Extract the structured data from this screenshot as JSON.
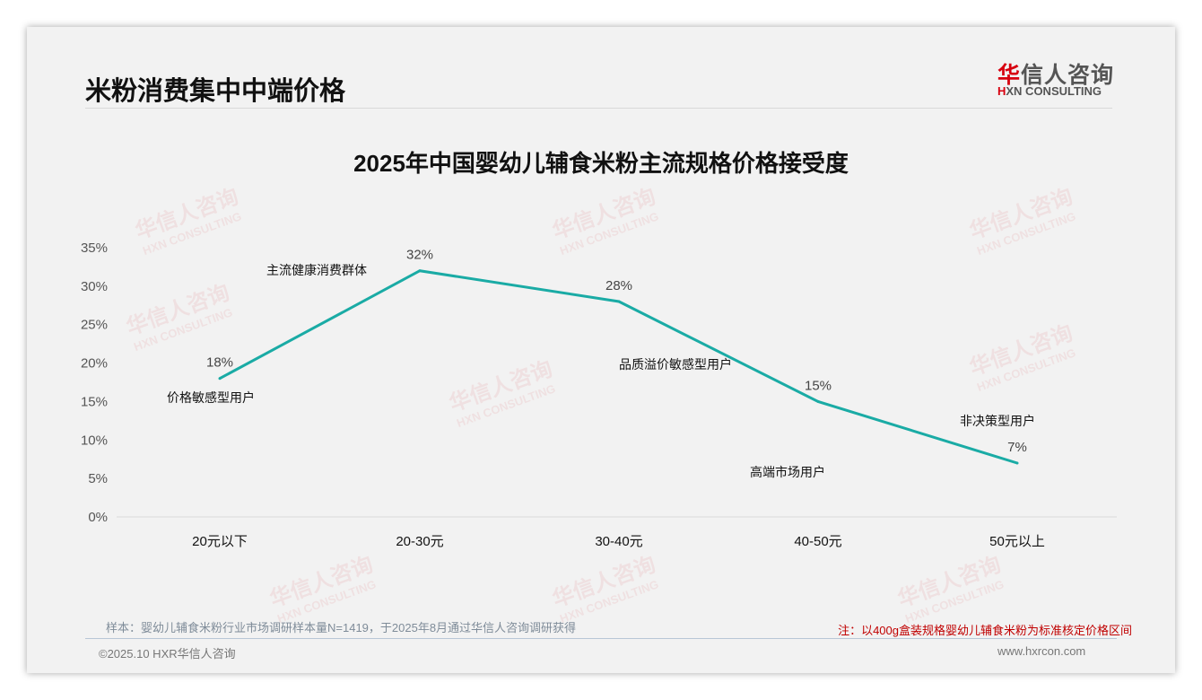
{
  "header": {
    "title": "米粉消费集中中端价格",
    "logo_cn_mark": "华",
    "logo_cn_rest": "信人咨询",
    "logo_en_mark": "H",
    "logo_en_rest": "XN CONSULTING"
  },
  "watermark": {
    "cn": "华信人咨询",
    "en": "HXN CONSULTING"
  },
  "chart_data": {
    "type": "line",
    "title": "2025年中国婴幼儿辅食米粉主流规格价格接受度",
    "categories": [
      "20元以下",
      "20-30元",
      "30-40元",
      "40-50元",
      "50元以上"
    ],
    "values": [
      18,
      32,
      28,
      15,
      7
    ],
    "data_labels": [
      "18%",
      "32%",
      "28%",
      "15%",
      "7%"
    ],
    "annotations": [
      "价格敏感型用户",
      "主流健康消费群体",
      "品质溢价敏感型用户",
      "高端市场用户",
      "非决策型用户"
    ],
    "yticks": [
      "0%",
      "5%",
      "10%",
      "15%",
      "20%",
      "25%",
      "30%",
      "35%"
    ],
    "ylim": [
      0,
      35
    ],
    "xlabel": "",
    "ylabel": "",
    "grid": false,
    "color": "#1aaba5"
  },
  "footer": {
    "sample": "样本：婴幼儿辅食米粉行业市场调研样本量N=1419，于2025年8月通过华信人咨询调研获得",
    "note": "注：以400g盒装规格婴幼儿辅食米粉为标准核定价格区间",
    "copyright": "©2025.10 HXR华信人咨询",
    "url": "www.hxrcon.com"
  }
}
